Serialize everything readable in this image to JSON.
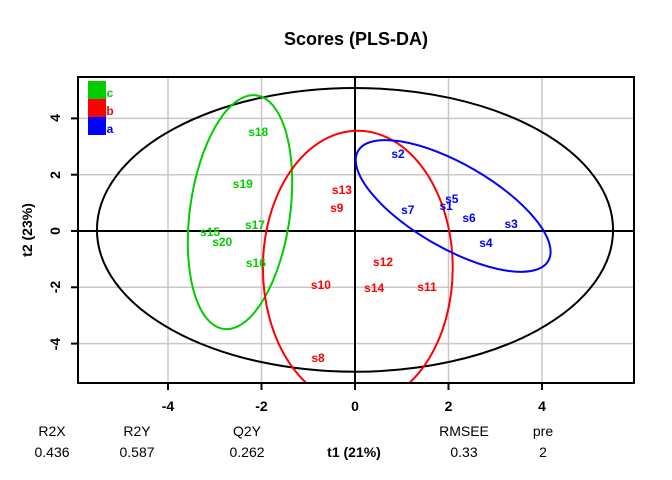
{
  "title": "Scores (PLS-DA)",
  "colors": {
    "foreground": "#000000",
    "grid": "#C8C8C8",
    "class_a": "#0000FF",
    "class_b": "#FF0000",
    "class_c": "#00CD00"
  },
  "legend": {
    "items": [
      {
        "label": "c",
        "color": "#00CD00"
      },
      {
        "label": "b",
        "color": "#FF0000"
      },
      {
        "label": "a",
        "color": "#0000FF"
      }
    ]
  },
  "stats": [
    {
      "label": "R2X",
      "value": "0.436"
    },
    {
      "label": "R2Y",
      "value": "0.587"
    },
    {
      "label": "Q2Y",
      "value": "0.262"
    },
    {
      "label": "RMSEE",
      "value": "0.33"
    },
    {
      "label": "pre",
      "value": "2"
    }
  ],
  "chart_data": {
    "type": "scatter",
    "title": "Scores (PLS-DA)",
    "xlabel": "t1 (21%)",
    "ylabel": "t2 (23%)",
    "xlim": [
      -5.9,
      6.0
    ],
    "ylim": [
      -5.4,
      5.5
    ],
    "x_ticks": [
      -4,
      -2,
      0,
      2,
      4
    ],
    "y_ticks": [
      -4,
      -2,
      0,
      2,
      4
    ],
    "grid": true,
    "legend_position": "top-left",
    "series": [
      {
        "name": "a",
        "color": "#0000FF",
        "points": [
          {
            "label": "s1",
            "x": 1.95,
            "y": 0.89
          },
          {
            "label": "s2",
            "x": 0.92,
            "y": 2.74
          },
          {
            "label": "s3",
            "x": 3.34,
            "y": 0.25
          },
          {
            "label": "s4",
            "x": 2.8,
            "y": -0.43
          },
          {
            "label": "s5",
            "x": 2.07,
            "y": 1.14
          },
          {
            "label": "s6",
            "x": 2.44,
            "y": 0.46
          },
          {
            "label": "s7",
            "x": 1.13,
            "y": 0.75
          }
        ]
      },
      {
        "name": "b",
        "color": "#FF0000",
        "points": [
          {
            "label": "s8",
            "x": -0.79,
            "y": -4.51
          },
          {
            "label": "s9",
            "x": -0.39,
            "y": 0.82
          },
          {
            "label": "s10",
            "x": -0.73,
            "y": -1.92
          },
          {
            "label": "s11",
            "x": 1.54,
            "y": -1.99
          },
          {
            "label": "s12",
            "x": 0.6,
            "y": -1.1
          },
          {
            "label": "s13",
            "x": -0.28,
            "y": 1.46
          },
          {
            "label": "s14",
            "x": 0.41,
            "y": -2.02
          }
        ]
      },
      {
        "name": "c",
        "color": "#00CD00",
        "points": [
          {
            "label": "s15",
            "x": -3.1,
            "y": -0.04
          },
          {
            "label": "s16",
            "x": -2.12,
            "y": -1.14
          },
          {
            "label": "s17",
            "x": -2.14,
            "y": 0.21
          },
          {
            "label": "s18",
            "x": -2.07,
            "y": 3.52
          },
          {
            "label": "s19",
            "x": -2.4,
            "y": 1.67
          },
          {
            "label": "s20",
            "x": -2.84,
            "y": -0.39
          }
        ]
      }
    ],
    "ellipses": [
      {
        "name": "hotelling-t2",
        "color": "#000000",
        "cx": 0.0,
        "cy": 0.04,
        "rx": 5.52,
        "ry": 5.04,
        "rot": 0
      },
      {
        "name": "class-c",
        "color": "#00CD00",
        "cx": -2.46,
        "cy": 0.67,
        "rx": 1.07,
        "ry": 4.19,
        "rot": 8
      },
      {
        "name": "class-b",
        "color": "#FF0000",
        "cx": 0.06,
        "cy": -1.31,
        "rx": 2.03,
        "ry": 4.87,
        "rot": 0
      },
      {
        "name": "class-a",
        "color": "#0000FF",
        "cx": 2.1,
        "cy": 0.89,
        "rx": 2.35,
        "ry": 1.49,
        "rot": 30
      }
    ]
  }
}
